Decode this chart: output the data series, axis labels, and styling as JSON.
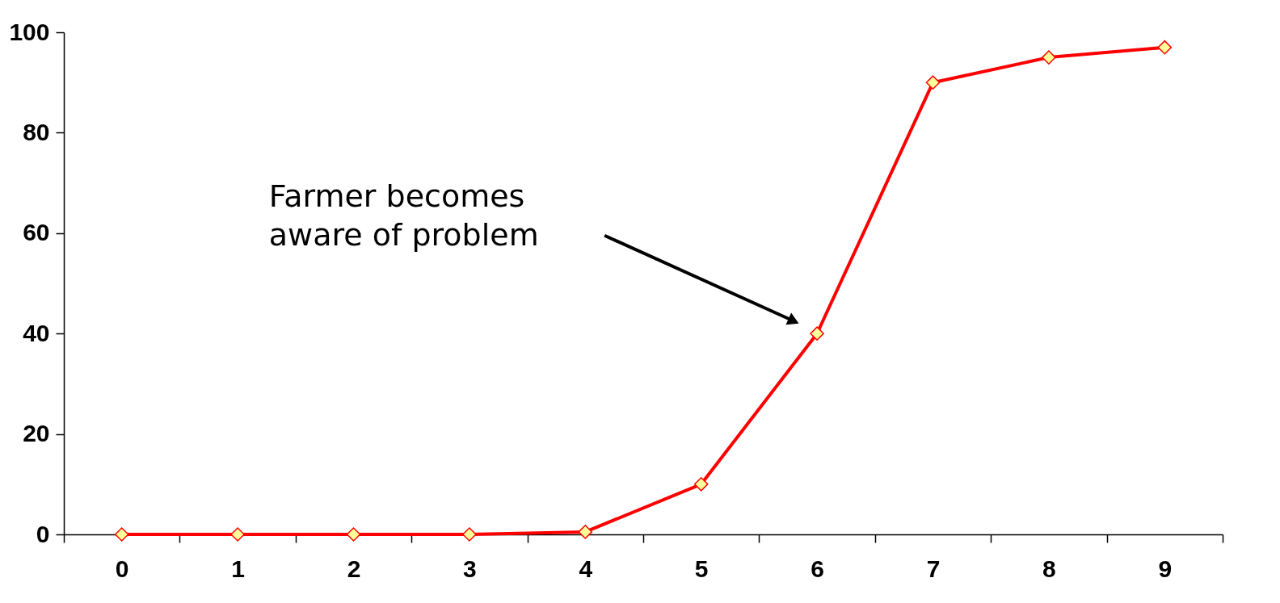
{
  "chart_data": {
    "type": "line",
    "categories": [
      "0",
      "1",
      "2",
      "3",
      "4",
      "5",
      "6",
      "7",
      "8",
      "9"
    ],
    "series": [
      {
        "color": "#ff0000",
        "values": [
          0,
          0,
          0,
          0,
          0.5,
          10,
          40,
          90,
          95,
          97
        ]
      }
    ],
    "ylim": [
      0,
      100
    ],
    "yticks": [
      0,
      20,
      40,
      60,
      80,
      100
    ],
    "marker": "diamond",
    "line_style": "solid",
    "grid": false,
    "annotations": [
      "Farmer becomes\naware of problem"
    ]
  }
}
